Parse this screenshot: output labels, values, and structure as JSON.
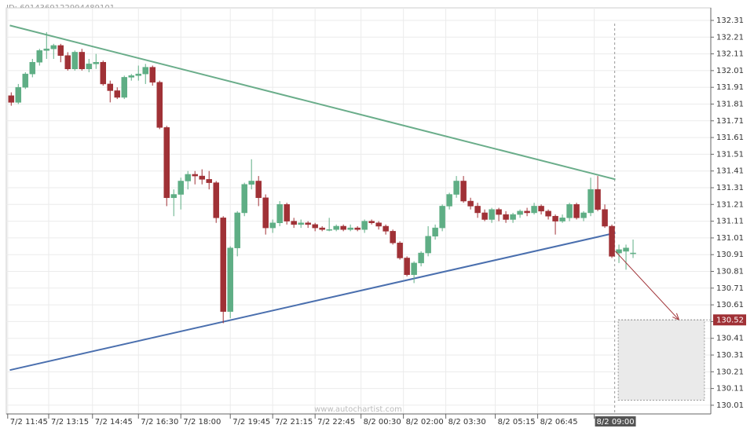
{
  "chart_data": {
    "type": "candlestick",
    "title": "ID: 6014369122994489101",
    "watermark": "www.autochartist.com",
    "up_color": "#5fae85",
    "down_color": "#a03136",
    "grid": true,
    "xlim": [
      -0.7,
      99
    ],
    "ylim": [
      129.958,
      132.385
    ],
    "yticks": [
      132.31,
      132.21,
      132.11,
      132.01,
      131.91,
      131.81,
      131.71,
      131.61,
      131.51,
      131.41,
      131.31,
      131.21,
      131.11,
      131.01,
      130.91,
      130.81,
      130.71,
      130.61,
      130.51,
      130.41,
      130.31,
      130.21,
      130.11,
      130.01
    ],
    "xticks": [
      {
        "value": -0.5,
        "label": "7/2 11:45"
      },
      {
        "value": 5.3,
        "label": "7/2 13:15"
      },
      {
        "value": 11.5,
        "label": "7/2 14:45"
      },
      {
        "value": 18,
        "label": "7/2 16:30"
      },
      {
        "value": 24,
        "label": "7/2 18:00"
      },
      {
        "value": 31,
        "label": "7/2 19:45"
      },
      {
        "value": 37,
        "label": "7/2 21:15"
      },
      {
        "value": 43,
        "label": "7/2 22:45"
      },
      {
        "value": 49.5,
        "label": "8/2 00:30"
      },
      {
        "value": 55.5,
        "label": "8/2 02:00"
      },
      {
        "value": 61.5,
        "label": "8/2 03:30"
      },
      {
        "value": 68.5,
        "label": "8/2 05:15"
      },
      {
        "value": 74.5,
        "label": "8/2 06:45"
      },
      {
        "value": 82.5,
        "label": "8/2 09:00"
      }
    ],
    "ohlc": [
      [
        131.86,
        131.88,
        131.8,
        131.82
      ],
      [
        131.82,
        131.93,
        131.81,
        131.91
      ],
      [
        131.91,
        132.0,
        131.9,
        131.99
      ],
      [
        131.99,
        132.08,
        131.97,
        132.06
      ],
      [
        132.06,
        132.14,
        132.04,
        132.13
      ],
      [
        132.13,
        132.24,
        132.08,
        132.14
      ],
      [
        132.14,
        132.17,
        132.08,
        132.16
      ],
      [
        132.16,
        132.17,
        132.06,
        132.1
      ],
      [
        132.1,
        132.12,
        132.01,
        132.02
      ],
      [
        132.02,
        132.13,
        132.01,
        132.12
      ],
      [
        132.12,
        132.14,
        132.01,
        132.02
      ],
      [
        132.02,
        132.08,
        132.0,
        132.05
      ],
      [
        132.05,
        132.11,
        132.02,
        132.06
      ],
      [
        132.06,
        132.07,
        131.92,
        131.93
      ],
      [
        131.93,
        131.95,
        131.82,
        131.89
      ],
      [
        131.89,
        131.91,
        131.84,
        131.85
      ],
      [
        131.85,
        131.98,
        131.84,
        131.97
      ],
      [
        131.97,
        131.99,
        131.95,
        131.98
      ],
      [
        131.98,
        132.04,
        131.95,
        131.99
      ],
      [
        131.99,
        132.05,
        131.93,
        132.03
      ],
      [
        132.03,
        132.04,
        131.92,
        131.94
      ],
      [
        131.94,
        131.95,
        131.66,
        131.67
      ],
      [
        131.67,
        131.68,
        131.2,
        131.25
      ],
      [
        131.25,
        131.3,
        131.14,
        131.27
      ],
      [
        131.27,
        131.37,
        131.18,
        131.35
      ],
      [
        131.35,
        131.41,
        131.3,
        131.39
      ],
      [
        131.39,
        131.41,
        131.33,
        131.38
      ],
      [
        131.38,
        131.42,
        131.33,
        131.36
      ],
      [
        131.36,
        131.41,
        131.3,
        131.34
      ],
      [
        131.34,
        131.35,
        131.1,
        131.13
      ],
      [
        131.13,
        131.14,
        130.5,
        130.57
      ],
      [
        130.57,
        130.96,
        130.53,
        130.95
      ],
      [
        130.95,
        131.17,
        130.9,
        131.16
      ],
      [
        131.16,
        131.34,
        131.14,
        131.33
      ],
      [
        131.33,
        131.48,
        131.3,
        131.35
      ],
      [
        131.35,
        131.38,
        131.2,
        131.25
      ],
      [
        131.25,
        131.27,
        131.03,
        131.07
      ],
      [
        131.07,
        131.12,
        131.04,
        131.1
      ],
      [
        131.1,
        131.23,
        131.08,
        131.21
      ],
      [
        131.21,
        131.22,
        131.09,
        131.11
      ],
      [
        131.11,
        131.13,
        131.07,
        131.09
      ],
      [
        131.09,
        131.12,
        131.07,
        131.1
      ],
      [
        131.1,
        131.11,
        131.07,
        131.09
      ],
      [
        131.09,
        131.1,
        131.05,
        131.07
      ],
      [
        131.07,
        131.08,
        131.05,
        131.06
      ],
      [
        131.06,
        131.13,
        131.05,
        131.06
      ],
      [
        131.06,
        131.09,
        131.05,
        131.08
      ],
      [
        131.08,
        131.09,
        131.05,
        131.06
      ],
      [
        131.06,
        131.09,
        131.05,
        131.07
      ],
      [
        131.07,
        131.08,
        131.05,
        131.06
      ],
      [
        131.06,
        131.12,
        131.04,
        131.11
      ],
      [
        131.11,
        131.12,
        131.09,
        131.1
      ],
      [
        131.1,
        131.11,
        131.06,
        131.08
      ],
      [
        131.08,
        131.09,
        131.03,
        131.05
      ],
      [
        131.05,
        131.06,
        130.97,
        130.98
      ],
      [
        130.98,
        130.99,
        130.88,
        130.89
      ],
      [
        130.89,
        130.9,
        130.78,
        130.79
      ],
      [
        130.79,
        130.87,
        130.74,
        130.86
      ],
      [
        130.86,
        130.93,
        130.84,
        130.92
      ],
      [
        130.92,
        131.08,
        130.9,
        131.02
      ],
      [
        131.02,
        131.09,
        131.0,
        131.07
      ],
      [
        131.07,
        131.21,
        131.05,
        131.2
      ],
      [
        131.2,
        131.28,
        131.18,
        131.27
      ],
      [
        131.27,
        131.38,
        131.25,
        131.35
      ],
      [
        131.35,
        131.38,
        131.22,
        131.23
      ],
      [
        131.23,
        131.25,
        131.18,
        131.2
      ],
      [
        131.2,
        131.22,
        131.13,
        131.16
      ],
      [
        131.16,
        131.18,
        131.11,
        131.12
      ],
      [
        131.12,
        131.19,
        131.1,
        131.18
      ],
      [
        131.18,
        131.19,
        131.11,
        131.15
      ],
      [
        131.15,
        131.17,
        131.1,
        131.12
      ],
      [
        131.12,
        131.16,
        131.1,
        131.15
      ],
      [
        131.15,
        131.18,
        131.13,
        131.17
      ],
      [
        131.17,
        131.19,
        131.14,
        131.16
      ],
      [
        131.16,
        131.22,
        131.15,
        131.2
      ],
      [
        131.2,
        131.21,
        131.15,
        131.17
      ],
      [
        131.17,
        131.18,
        131.12,
        131.14
      ],
      [
        131.14,
        131.15,
        131.03,
        131.11
      ],
      [
        131.11,
        131.15,
        131.1,
        131.13
      ],
      [
        131.13,
        131.22,
        131.11,
        131.21
      ],
      [
        131.21,
        131.22,
        131.12,
        131.13
      ],
      [
        131.13,
        131.17,
        131.11,
        131.16
      ],
      [
        131.16,
        131.37,
        131.14,
        131.3
      ],
      [
        131.3,
        131.38,
        131.17,
        131.18
      ],
      [
        131.18,
        131.21,
        131.07,
        131.08
      ],
      [
        131.08,
        131.09,
        130.89,
        130.9
      ],
      [
        130.92,
        130.97,
        130.86,
        130.94
      ],
      [
        130.93,
        130.97,
        130.82,
        130.95
      ],
      [
        130.92,
        131.0,
        130.89,
        130.92
      ]
    ],
    "resistance": {
      "color": "#6aad8a",
      "start": [
        -0.2,
        132.28
      ],
      "end": [
        85.5,
        131.36
      ]
    },
    "support": {
      "color": "#4a6fae",
      "start": [
        -0.2,
        130.22
      ],
      "end": [
        85.5,
        131.04
      ]
    },
    "current_time": 85.4,
    "forecast_arrow": {
      "color": "#a03136",
      "start": [
        85.5,
        130.93
      ],
      "end": [
        94.5,
        130.52
      ]
    },
    "forecast_box": {
      "x": [
        85.9,
        98.1
      ],
      "y": [
        130.04,
        130.52
      ]
    },
    "forecast_level": 130.52
  }
}
